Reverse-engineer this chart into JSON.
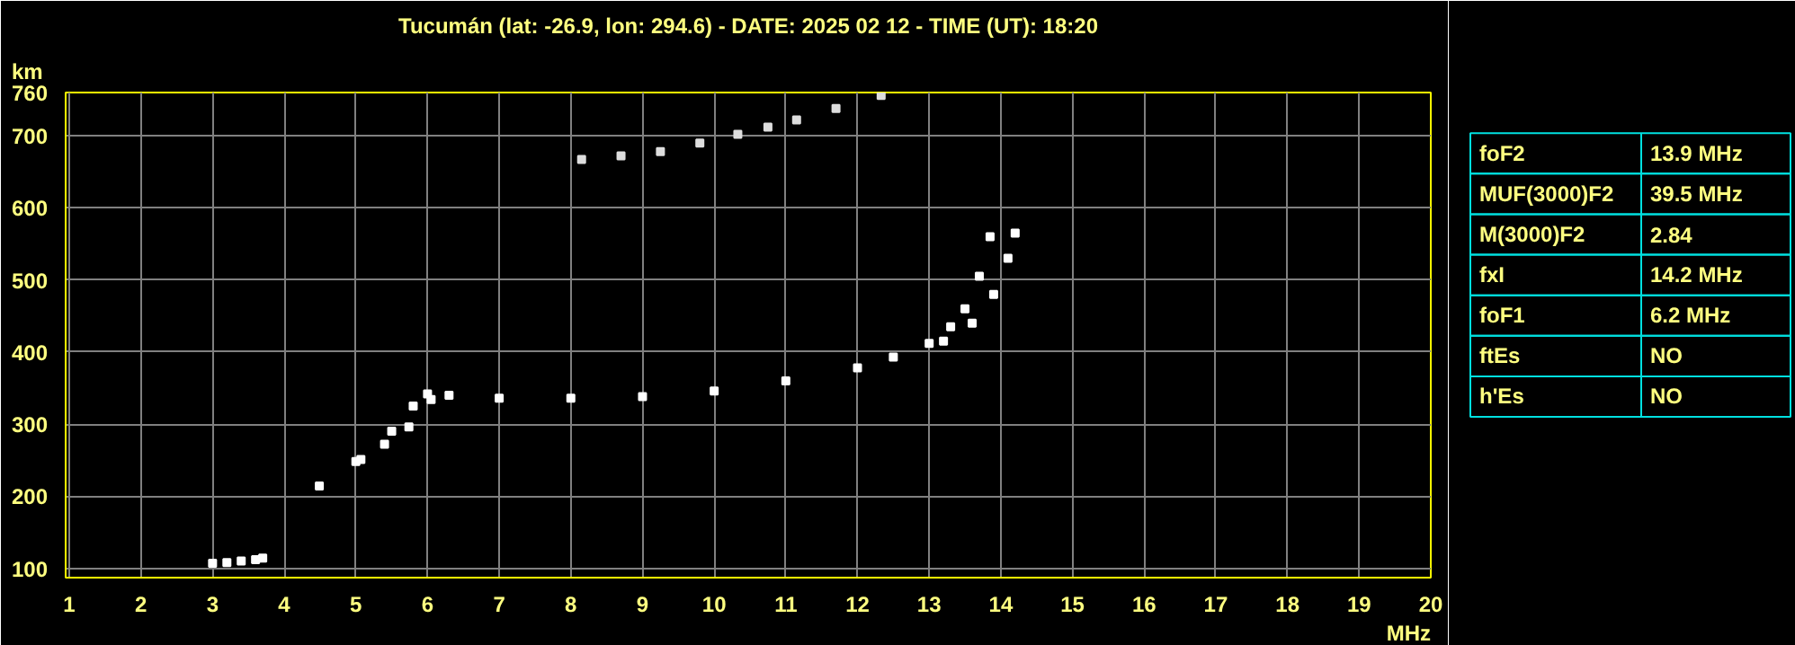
{
  "chart_data": [
    {
      "type": "scatter",
      "title": "Tucumán (lat: -26.9, lon: 294.6) - DATE: 2025 02 12 - TIME (UT): 18:20",
      "xlabel": "MHz",
      "ylabel": "km",
      "xlim": [
        0.95,
        20
      ],
      "ylim": [
        87,
        760
      ],
      "xticks": [
        1,
        2,
        3,
        4,
        5,
        6,
        7,
        8,
        9,
        10,
        11,
        12,
        13,
        14,
        15,
        16,
        17,
        18,
        19,
        20
      ],
      "yticks": [
        100,
        200,
        300,
        400,
        500,
        600,
        700,
        760
      ],
      "grid": true,
      "marker": "square",
      "series": [
        {
          "color": "#ffffff",
          "x": [
            4.49,
            5.0,
            5.5,
            5.8,
            6.0,
            6.3,
            7,
            8,
            9,
            10,
            11,
            12,
            12.5,
            13,
            13.3,
            13.5,
            13.7,
            13.85
          ],
          "values": [
            214,
            248,
            290,
            325,
            342,
            340,
            336,
            336,
            338,
            346,
            360,
            378,
            393,
            412,
            435,
            460,
            505,
            560
          ]
        },
        {
          "color": "#ffffff",
          "x": [
            5.07,
            5.4,
            5.74,
            6.05,
            13.2,
            13.6,
            13.9,
            14.1,
            14.2
          ],
          "values": [
            251,
            272,
            296,
            334,
            415,
            440,
            480,
            530,
            565
          ]
        },
        {
          "color": "#ffffff",
          "x": [
            3.0,
            3.2,
            3.4,
            3.6,
            3.7
          ],
          "values": [
            107,
            108,
            110,
            112,
            114
          ]
        },
        {
          "color": "#dddddd",
          "x": [
            8.15,
            8.7,
            9.25,
            9.8,
            10.33,
            10.75,
            11.15,
            11.7,
            12.33
          ],
          "values": [
            667,
            672,
            678,
            690,
            702,
            712,
            722,
            738,
            756
          ]
        }
      ]
    },
    {
      "type": "other",
      "annotations": [
        "foF2",
        "13.9 MHz",
        "MUF(3000)F2",
        "39.5 MHz",
        "M(3000)F2",
        "2.84",
        "fxI",
        "14.2 MHz",
        "foF1",
        "6.2 MHz",
        "ftEs",
        "NO",
        "h'Es",
        "NO"
      ]
    }
  ]
}
